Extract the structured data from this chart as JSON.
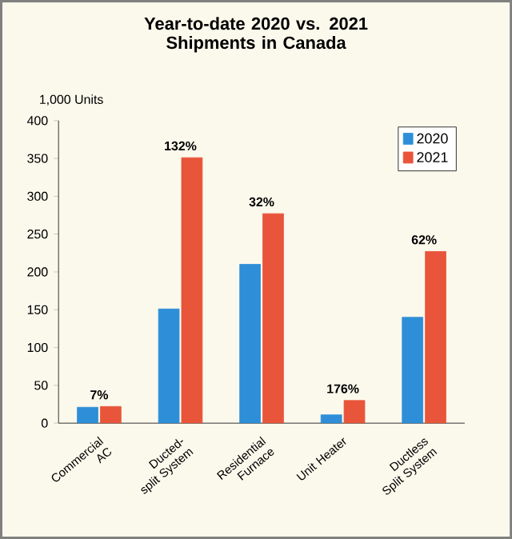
{
  "chart_data": {
    "type": "bar",
    "title": "Year-to-date 2020 vs. 2021 Shipments in Canada",
    "ylabel": "1,000 Units",
    "categories": [
      "Commercial AC",
      "Ducted-split System",
      "Residential Furnace",
      "Unit Heater",
      "Ductless Split System"
    ],
    "series": [
      {
        "name": "2020",
        "color": "#2e8fd8",
        "values": [
          21,
          151,
          210,
          11,
          140
        ]
      },
      {
        "name": "2021",
        "color": "#e8553a",
        "values": [
          22,
          351,
          277,
          30,
          227
        ]
      }
    ],
    "ylim": [
      0,
      400
    ],
    "yticks": [
      0,
      50,
      100,
      150,
      200,
      250,
      300,
      350,
      400
    ],
    "legend": "top right",
    "annotations": [
      "7%",
      "132%",
      "32%",
      "176%",
      "62%"
    ]
  }
}
